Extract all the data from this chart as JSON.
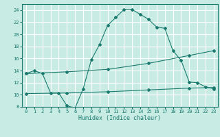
{
  "xlabel": "Humidex (Indice chaleur)",
  "xlim": [
    -0.5,
    23.5
  ],
  "ylim": [
    8,
    25
  ],
  "yticks": [
    8,
    10,
    12,
    14,
    16,
    18,
    20,
    22,
    24
  ],
  "xticks": [
    0,
    1,
    2,
    3,
    4,
    5,
    6,
    7,
    8,
    9,
    10,
    11,
    12,
    13,
    14,
    15,
    16,
    17,
    18,
    19,
    20,
    21,
    22,
    23
  ],
  "bg_color": "#c8ebe4",
  "grid_color": "#ffffff",
  "line_color": "#1a7a6e",
  "line1_x": [
    0,
    1,
    2,
    3,
    4,
    5,
    6,
    7,
    8,
    9,
    10,
    11,
    12,
    13,
    14,
    15,
    16,
    17,
    18,
    19,
    20,
    21,
    22,
    23
  ],
  "line1_y": [
    13.5,
    14.0,
    13.5,
    10.3,
    10.3,
    8.2,
    7.8,
    11.0,
    15.8,
    18.3,
    21.5,
    22.8,
    24.1,
    24.1,
    23.3,
    22.5,
    21.2,
    21.0,
    17.3,
    15.7,
    12.1,
    12.0,
    11.3,
    11.0
  ],
  "line2_x": [
    0,
    5,
    10,
    15,
    20,
    23
  ],
  "line2_y": [
    13.5,
    13.8,
    14.2,
    15.2,
    16.5,
    17.3
  ],
  "line3_x": [
    0,
    5,
    10,
    15,
    20,
    23
  ],
  "line3_y": [
    10.2,
    10.3,
    10.5,
    10.8,
    11.1,
    11.2
  ],
  "marker": "D",
  "markersize": 2.0,
  "linewidth": 0.8,
  "tick_fontsize": 5.0,
  "xlabel_fontsize": 6.0
}
